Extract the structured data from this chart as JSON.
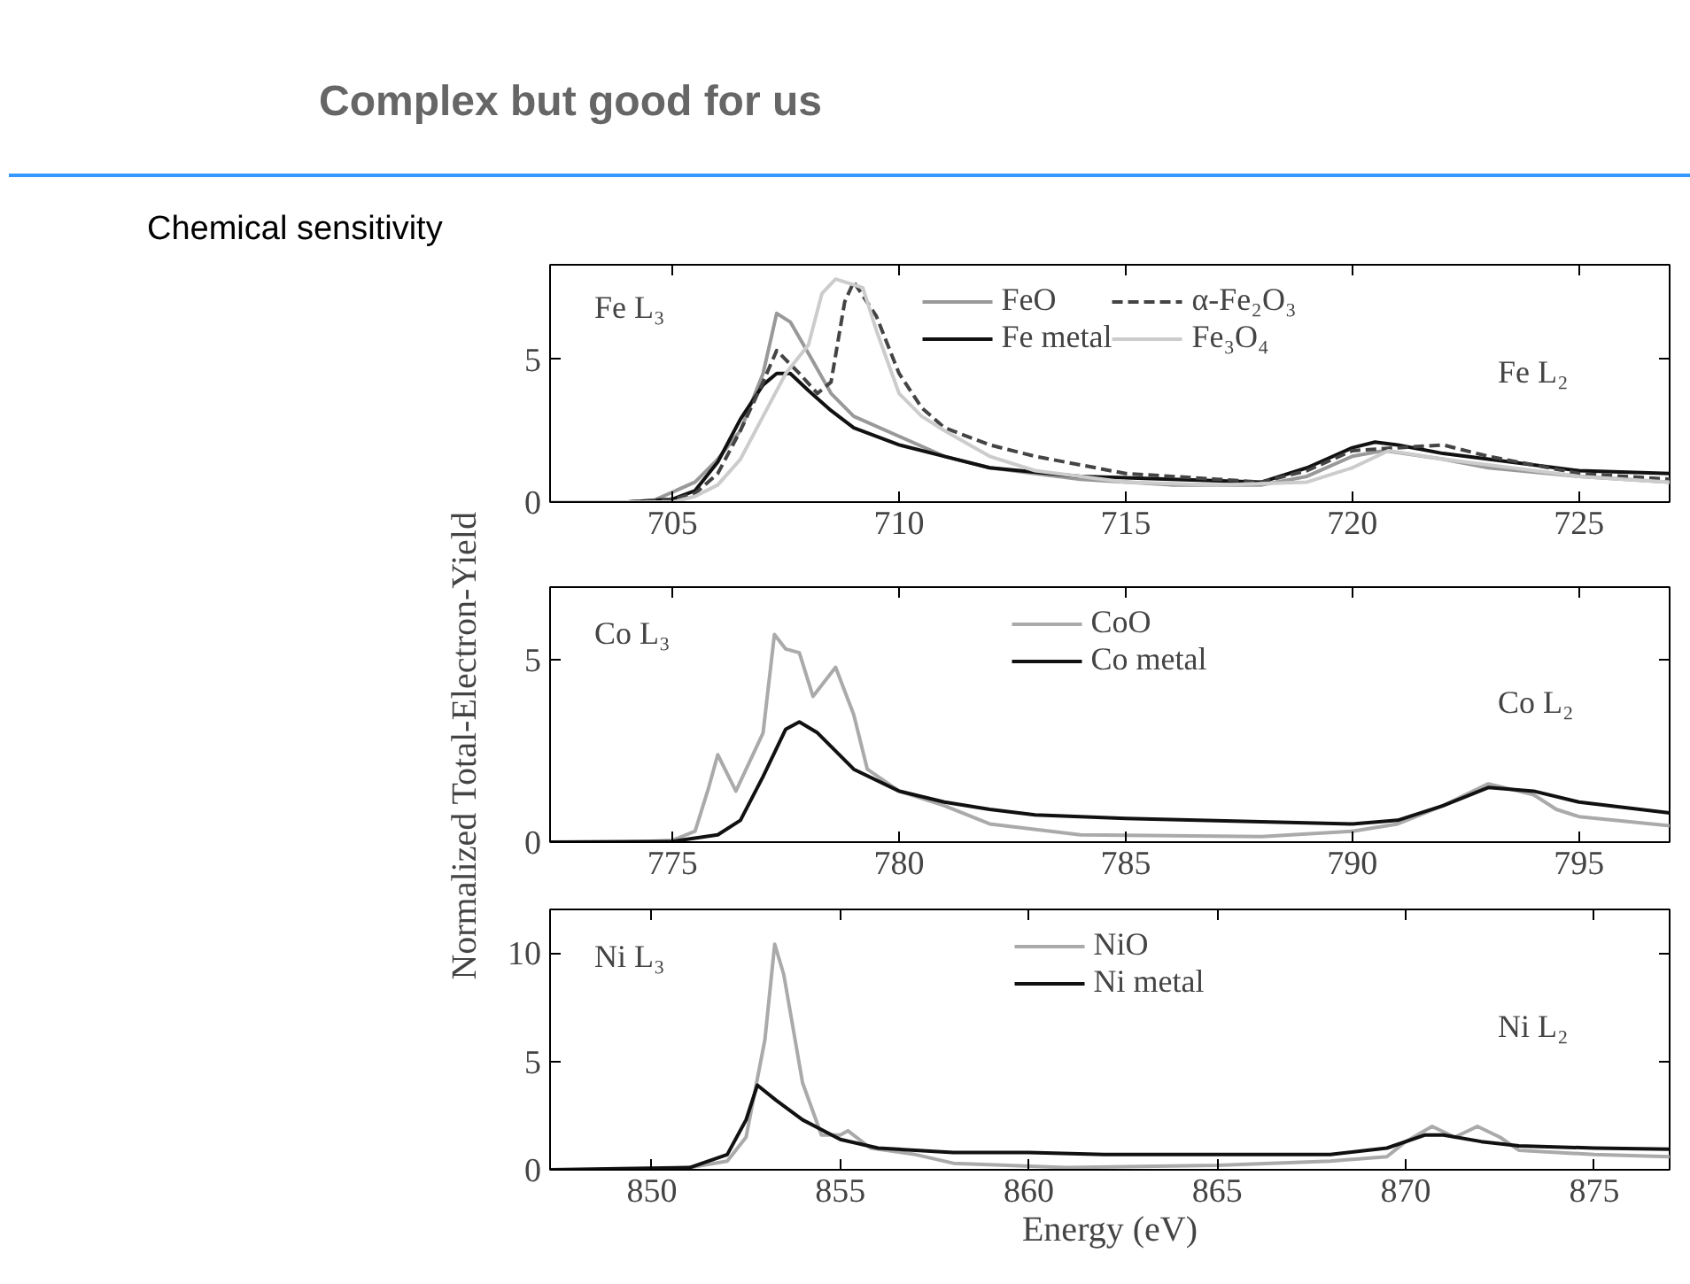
{
  "chart_data": [
    {
      "type": "line",
      "title": "Complex but good for us",
      "subtitle": "Chemical sensitivity",
      "legend": "top",
      "grid": false,
      "marker": "none",
      "line_style": "solid",
      "xlim": [
        702.3,
        727
      ],
      "ylim": [
        0,
        8.3
      ],
      "xticks": [
        705,
        710,
        715,
        720,
        725
      ],
      "yticks": [
        0,
        5
      ],
      "annotations": [
        "Fe L₃",
        "Fe L₂"
      ],
      "series": [
        {
          "name": "FeO",
          "color": "#999999",
          "x": [
            702.3,
            704.5,
            705.5,
            706,
            706.5,
            707,
            707.3,
            707.6,
            708,
            708.5,
            709,
            710,
            711,
            712,
            714,
            716,
            718,
            719,
            720,
            720.7,
            722,
            723,
            725,
            727
          ],
          "values": [
            0,
            0,
            0.7,
            1.5,
            2.5,
            4.5,
            6.6,
            6.3,
            5.2,
            3.8,
            3.0,
            2.3,
            1.6,
            1.2,
            0.8,
            0.6,
            0.6,
            0.9,
            1.6,
            1.8,
            1.5,
            1.2,
            0.9,
            0.7
          ]
        },
        {
          "name": "Fe metal",
          "color": "#111111",
          "x": [
            702.3,
            704,
            705,
            705.5,
            706,
            706.5,
            707,
            707.3,
            707.6,
            708,
            708.5,
            709,
            710,
            711,
            712,
            714,
            716,
            718,
            719,
            720,
            720.5,
            721,
            722,
            723,
            725,
            727
          ],
          "values": [
            0,
            0,
            0.1,
            0.4,
            1.4,
            2.9,
            4.1,
            4.5,
            4.5,
            3.9,
            3.2,
            2.6,
            2.0,
            1.6,
            1.2,
            0.9,
            0.8,
            0.7,
            1.2,
            1.9,
            2.1,
            2.0,
            1.7,
            1.5,
            1.1,
            1.0
          ]
        },
        {
          "name": "α-Fe₂O₃",
          "color": "#444444",
          "line_style": "dashed",
          "x": [
            702.3,
            704,
            705,
            705.5,
            706,
            706.5,
            707,
            707.3,
            707.8,
            708.2,
            708.5,
            708.8,
            709.0,
            709.5,
            710,
            710.5,
            711,
            712,
            713,
            715,
            717,
            718,
            719,
            720,
            721,
            722,
            723,
            725,
            727
          ],
          "values": [
            0,
            0,
            0.1,
            0.3,
            1.0,
            2.5,
            4.2,
            5.3,
            4.5,
            3.8,
            4.2,
            7.0,
            7.7,
            6.5,
            4.5,
            3.3,
            2.6,
            2.0,
            1.6,
            1.0,
            0.8,
            0.7,
            1.1,
            1.8,
            1.9,
            2.0,
            1.6,
            1.0,
            0.8
          ]
        },
        {
          "name": "Fe₃O₄",
          "color": "#cccccc",
          "x": [
            702.3,
            705,
            705.5,
            706,
            706.5,
            707,
            707.5,
            708,
            708.3,
            708.6,
            709.2,
            709.5,
            710,
            710.5,
            711,
            712,
            713,
            715,
            717,
            719,
            720,
            720.8,
            722,
            723,
            725,
            727
          ],
          "values": [
            0,
            0,
            0.2,
            0.6,
            1.5,
            3.0,
            4.5,
            5.5,
            7.3,
            7.8,
            7.5,
            6.0,
            3.8,
            3.0,
            2.5,
            1.6,
            1.1,
            0.7,
            0.6,
            0.7,
            1.2,
            1.8,
            1.5,
            1.3,
            0.9,
            0.7
          ]
        }
      ]
    },
    {
      "type": "line",
      "ylabel": "Normalized Total-Electron-Yield",
      "legend": "top",
      "grid": false,
      "marker": "none",
      "line_style": "solid",
      "xlim": [
        772.3,
        797
      ],
      "ylim": [
        0,
        7
      ],
      "xticks": [
        775,
        780,
        785,
        790,
        795
      ],
      "yticks": [
        0,
        5
      ],
      "annotations": [
        "Co L₃",
        "Co L₂"
      ],
      "series": [
        {
          "name": "CoO",
          "color": "#aaaaaa",
          "x": [
            772.3,
            774,
            775,
            775.5,
            775.8,
            776.0,
            776.4,
            777,
            777.25,
            777.5,
            777.8,
            778.1,
            778.6,
            779,
            779.3,
            780,
            781,
            782,
            784,
            788,
            790,
            791,
            792,
            793,
            794,
            794.5,
            795,
            797
          ],
          "values": [
            0,
            0,
            0.05,
            0.3,
            1.5,
            2.4,
            1.4,
            3.0,
            5.7,
            5.3,
            5.2,
            4.0,
            4.8,
            3.5,
            2.0,
            1.4,
            1.0,
            0.5,
            0.2,
            0.15,
            0.3,
            0.5,
            1.0,
            1.6,
            1.3,
            0.9,
            0.7,
            0.45
          ]
        },
        {
          "name": "Co metal",
          "color": "#111111",
          "x": [
            772.3,
            775,
            776,
            776.5,
            777,
            777.5,
            777.8,
            778.2,
            779,
            780,
            781,
            782,
            783,
            785,
            790,
            791,
            792,
            793,
            794,
            795,
            797
          ],
          "values": [
            0,
            0.02,
            0.2,
            0.6,
            1.8,
            3.1,
            3.3,
            3.0,
            2.0,
            1.4,
            1.1,
            0.9,
            0.75,
            0.65,
            0.5,
            0.6,
            1.0,
            1.5,
            1.4,
            1.1,
            0.8
          ]
        }
      ]
    },
    {
      "type": "line",
      "xlabel": "Energy (eV)",
      "legend": "top",
      "grid": false,
      "marker": "none",
      "line_style": "solid",
      "xlim": [
        847.3,
        877
      ],
      "ylim": [
        0,
        12
      ],
      "xticks": [
        850,
        855,
        860,
        865,
        870,
        875
      ],
      "yticks": [
        0,
        5,
        10
      ],
      "annotations": [
        "Ni L₃",
        "Ni L₂"
      ],
      "series": [
        {
          "name": "NiO",
          "color": "#aaaaaa",
          "x": [
            847.3,
            850,
            851,
            852,
            852.5,
            853,
            853.26,
            853.5,
            854,
            854.5,
            855,
            855.2,
            855.8,
            857,
            858,
            861,
            865,
            868,
            869.5,
            870,
            870.7,
            871.3,
            871.9,
            872.5,
            873,
            875,
            877
          ],
          "values": [
            0,
            0,
            0.1,
            0.4,
            1.5,
            6.0,
            10.4,
            9.0,
            4.0,
            1.6,
            1.6,
            1.8,
            1.0,
            0.7,
            0.3,
            0.1,
            0.2,
            0.4,
            0.6,
            1.3,
            2.0,
            1.5,
            2.0,
            1.5,
            0.9,
            0.7,
            0.6
          ]
        },
        {
          "name": "Ni metal",
          "color": "#111111",
          "x": [
            847.3,
            851,
            852,
            852.5,
            852.8,
            853.3,
            854,
            855,
            856,
            858,
            860,
            862,
            866,
            868,
            869.5,
            870.5,
            871,
            872,
            873,
            875,
            877
          ],
          "values": [
            0,
            0.1,
            0.7,
            2.3,
            3.9,
            3.2,
            2.3,
            1.4,
            1.0,
            0.8,
            0.8,
            0.7,
            0.7,
            0.7,
            1.0,
            1.6,
            1.6,
            1.3,
            1.1,
            1.0,
            0.95
          ]
        }
      ]
    }
  ]
}
